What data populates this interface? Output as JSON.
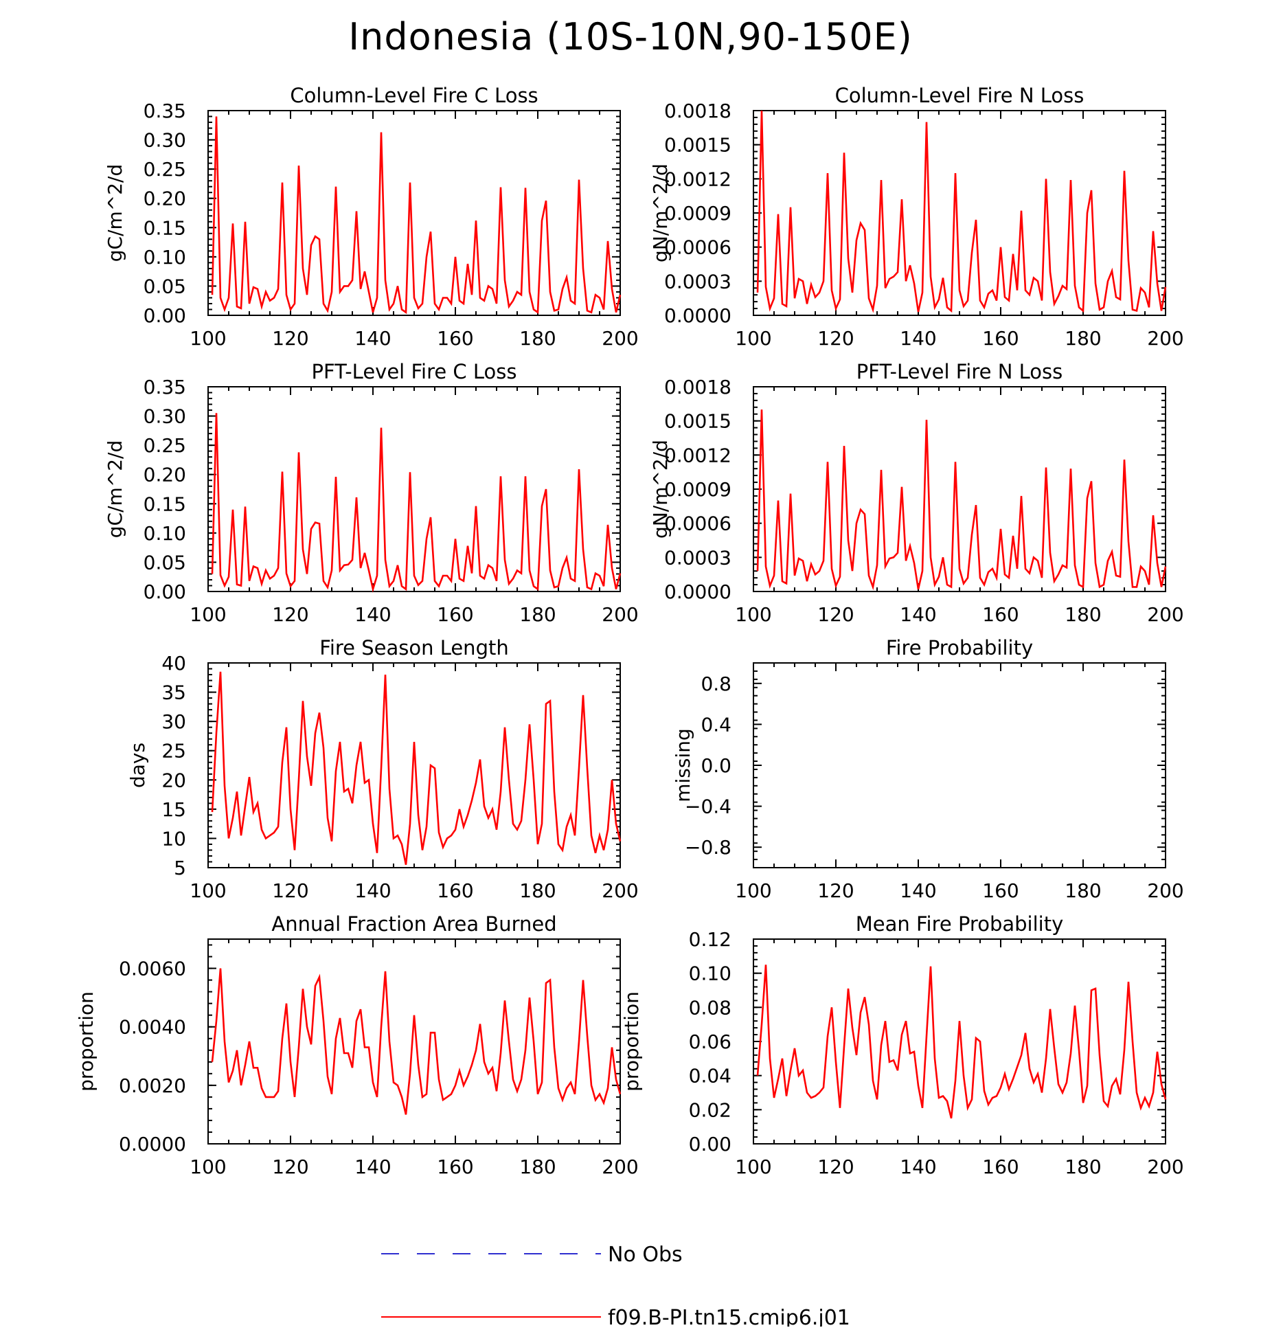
{
  "figure": {
    "title": "Indonesia (10S-10N,90-150E)"
  },
  "legend": {
    "items": [
      {
        "label": "No Obs",
        "color": "#2f2fd0",
        "style": "dashed"
      },
      {
        "label": "f09.B-PI.tn15.cmip6.j01",
        "color": "#ff0000",
        "style": "solid"
      }
    ]
  },
  "chart_data": [
    {
      "id": "col-c",
      "type": "line",
      "title": "Column-Level Fire C Loss",
      "ylabel": "gC/m^2/d",
      "xlabel": "",
      "xlim": [
        100,
        200
      ],
      "ylim": [
        0,
        0.35
      ],
      "xticks": [
        "100",
        "120",
        "140",
        "160",
        "180",
        "200"
      ],
      "yticks": [
        "0.00",
        "0.05",
        "0.10",
        "0.15",
        "0.20",
        "0.25",
        "0.30",
        "0.35"
      ],
      "x_start": 101,
      "series": [
        {
          "color": "#ff0000",
          "values": [
            0.035,
            0.34,
            0.03,
            0.01,
            0.03,
            0.157,
            0.015,
            0.012,
            0.16,
            0.02,
            0.048,
            0.045,
            0.015,
            0.04,
            0.025,
            0.03,
            0.045,
            0.227,
            0.035,
            0.01,
            0.02,
            0.256,
            0.08,
            0.035,
            0.12,
            0.135,
            0.13,
            0.02,
            0.008,
            0.04,
            0.22,
            0.04,
            0.05,
            0.05,
            0.06,
            0.178,
            0.045,
            0.075,
            0.04,
            0.005,
            0.03,
            0.313,
            0.06,
            0.01,
            0.02,
            0.05,
            0.01,
            0.005,
            0.227,
            0.03,
            0.012,
            0.02,
            0.1,
            0.143,
            0.02,
            0.01,
            0.03,
            0.03,
            0.02,
            0.1,
            0.025,
            0.02,
            0.088,
            0.035,
            0.162,
            0.03,
            0.025,
            0.05,
            0.045,
            0.02,
            0.219,
            0.06,
            0.015,
            0.025,
            0.04,
            0.035,
            0.218,
            0.04,
            0.01,
            0.005,
            0.162,
            0.196,
            0.04,
            0.008,
            0.01,
            0.045,
            0.065,
            0.025,
            0.02,
            0.232,
            0.08,
            0.008,
            0.005,
            0.035,
            0.03,
            0.01,
            0.127,
            0.045,
            0.005,
            0.035
          ]
        }
      ]
    },
    {
      "id": "col-n",
      "type": "line",
      "title": "Column-Level Fire N Loss",
      "ylabel": "gN/m^2/d",
      "xlabel": "",
      "xlim": [
        100,
        200
      ],
      "ylim": [
        0,
        0.0018
      ],
      "xticks": [
        "100",
        "120",
        "140",
        "160",
        "180",
        "200"
      ],
      "yticks": [
        "0.0000",
        "0.0003",
        "0.0006",
        "0.0009",
        "0.0012",
        "0.0015",
        "0.0018"
      ],
      "x_start": 101,
      "series": [
        {
          "color": "#ff0000",
          "values": [
            0.0002,
            0.0018,
            0.00025,
            6e-05,
            0.00015,
            0.00089,
            0.0001,
            8e-05,
            0.00095,
            0.00015,
            0.00032,
            0.0003,
            0.0001,
            0.00027,
            0.00016,
            0.0002,
            0.0003,
            0.00125,
            0.00022,
            6e-05,
            0.00014,
            0.00143,
            0.0005,
            0.0002,
            0.00066,
            0.00081,
            0.00075,
            0.00015,
            5e-05,
            0.00026,
            0.00119,
            0.00024,
            0.00032,
            0.00034,
            0.00038,
            0.00102,
            0.0003,
            0.00044,
            0.00028,
            3e-05,
            0.0002,
            0.0017,
            0.00034,
            7e-05,
            0.00014,
            0.00033,
            7e-05,
            4e-05,
            0.00125,
            0.00022,
            8e-05,
            0.00013,
            0.00055,
            0.00084,
            0.00013,
            7e-05,
            0.00019,
            0.00022,
            0.00013,
            0.0006,
            0.00016,
            0.00013,
            0.00054,
            0.00022,
            0.00092,
            0.00022,
            0.00018,
            0.00033,
            0.0003,
            0.00013,
            0.0012,
            0.00038,
            0.0001,
            0.00017,
            0.00026,
            0.00023,
            0.00119,
            0.00026,
            7e-05,
            4e-05,
            0.0009,
            0.0011,
            0.00028,
            5e-05,
            7e-05,
            0.0003,
            0.00039,
            0.00016,
            0.00014,
            0.00127,
            0.00048,
            5e-05,
            4e-05,
            0.00024,
            0.0002,
            7e-05,
            0.00074,
            0.00028,
            4e-05,
            0.00025
          ]
        }
      ]
    },
    {
      "id": "pft-c",
      "type": "line",
      "title": "PFT-Level Fire C Loss",
      "ylabel": "gC/m^2/d",
      "xlabel": "",
      "xlim": [
        100,
        200
      ],
      "ylim": [
        0,
        0.35
      ],
      "xticks": [
        "100",
        "120",
        "140",
        "160",
        "180",
        "200"
      ],
      "yticks": [
        "0.00",
        "0.05",
        "0.10",
        "0.15",
        "0.20",
        "0.25",
        "0.30",
        "0.35"
      ],
      "x_start": 101,
      "series": [
        {
          "color": "#ff0000",
          "values": [
            0.03,
            0.305,
            0.028,
            0.01,
            0.025,
            0.14,
            0.012,
            0.01,
            0.145,
            0.018,
            0.043,
            0.04,
            0.013,
            0.036,
            0.022,
            0.027,
            0.04,
            0.205,
            0.031,
            0.009,
            0.018,
            0.238,
            0.072,
            0.03,
            0.107,
            0.118,
            0.116,
            0.018,
            0.007,
            0.036,
            0.196,
            0.036,
            0.045,
            0.046,
            0.054,
            0.161,
            0.04,
            0.066,
            0.036,
            0.004,
            0.027,
            0.28,
            0.054,
            0.009,
            0.018,
            0.045,
            0.009,
            0.004,
            0.204,
            0.027,
            0.011,
            0.018,
            0.09,
            0.127,
            0.018,
            0.009,
            0.027,
            0.027,
            0.018,
            0.09,
            0.022,
            0.018,
            0.078,
            0.031,
            0.146,
            0.027,
            0.022,
            0.045,
            0.04,
            0.018,
            0.197,
            0.054,
            0.013,
            0.022,
            0.036,
            0.031,
            0.197,
            0.036,
            0.009,
            0.004,
            0.146,
            0.175,
            0.036,
            0.007,
            0.009,
            0.04,
            0.058,
            0.022,
            0.018,
            0.209,
            0.072,
            0.007,
            0.004,
            0.031,
            0.027,
            0.009,
            0.114,
            0.04,
            0.004,
            0.031
          ]
        }
      ]
    },
    {
      "id": "pft-n",
      "type": "line",
      "title": "PFT-Level Fire N Loss",
      "ylabel": "gN/m^2/d",
      "xlabel": "",
      "xlim": [
        100,
        200
      ],
      "ylim": [
        0,
        0.0018
      ],
      "xticks": [
        "100",
        "120",
        "140",
        "160",
        "180",
        "200"
      ],
      "yticks": [
        "0.0000",
        "0.0003",
        "0.0006",
        "0.0009",
        "0.0012",
        "0.0015",
        "0.0018"
      ],
      "x_start": 101,
      "series": [
        {
          "color": "#ff0000",
          "values": [
            0.00018,
            0.0016,
            0.00022,
            5e-05,
            0.00014,
            0.0008,
            9e-05,
            7e-05,
            0.00086,
            0.00014,
            0.00029,
            0.00027,
            9e-05,
            0.00024,
            0.00015,
            0.00018,
            0.00027,
            0.00114,
            0.0002,
            5e-05,
            0.00013,
            0.00128,
            0.00045,
            0.00018,
            0.0006,
            0.00072,
            0.00068,
            0.00014,
            4e-05,
            0.00023,
            0.00107,
            0.00022,
            0.00029,
            0.0003,
            0.00034,
            0.00092,
            0.00027,
            0.0004,
            0.00025,
            2e-05,
            0.00018,
            0.00151,
            0.0003,
            6e-05,
            0.00013,
            0.0003,
            6e-05,
            4e-05,
            0.00114,
            0.0002,
            7e-05,
            0.00012,
            0.0005,
            0.00076,
            0.00012,
            6e-05,
            0.00017,
            0.0002,
            0.00012,
            0.00055,
            0.00015,
            0.00012,
            0.00049,
            0.0002,
            0.00084,
            0.0002,
            0.00016,
            0.0003,
            0.00027,
            0.00012,
            0.00109,
            0.00034,
            9e-05,
            0.00015,
            0.00023,
            0.00021,
            0.00108,
            0.00023,
            6e-05,
            4e-05,
            0.00082,
            0.00097,
            0.00025,
            4e-05,
            6e-05,
            0.00027,
            0.00035,
            0.00014,
            0.00013,
            0.00116,
            0.00044,
            4e-05,
            4e-05,
            0.00022,
            0.00018,
            6e-05,
            0.00067,
            0.00025,
            4e-05,
            0.00022
          ]
        }
      ]
    },
    {
      "id": "season",
      "type": "line",
      "title": "Fire Season Length",
      "ylabel": "days",
      "xlabel": "",
      "xlim": [
        100,
        200
      ],
      "ylim": [
        5,
        40
      ],
      "xticks": [
        "100",
        "120",
        "140",
        "160",
        "180",
        "200"
      ],
      "yticks": [
        "5",
        "10",
        "15",
        "20",
        "25",
        "30",
        "35",
        "40"
      ],
      "x_start": 101,
      "series": [
        {
          "color": "#ff0000",
          "values": [
            14.5,
            28,
            38.5,
            19,
            10,
            13.5,
            18,
            10.5,
            15.5,
            20.5,
            14.5,
            16,
            11.5,
            10,
            10.5,
            11,
            12,
            23,
            29,
            15,
            8,
            20,
            33.5,
            24,
            19,
            28,
            31.5,
            25.5,
            13.5,
            9.5,
            21.5,
            26.5,
            18,
            18.5,
            16,
            22.5,
            26.5,
            19.5,
            20,
            12.5,
            7.5,
            22,
            38,
            18.5,
            10,
            10.5,
            9,
            5.5,
            12.5,
            26.5,
            14,
            8,
            12,
            22.5,
            22,
            11,
            8.5,
            10,
            10.5,
            11.5,
            15,
            12,
            14,
            16.5,
            19.5,
            23.5,
            15.5,
            13.5,
            15,
            11.5,
            18,
            29,
            20,
            12.5,
            11.5,
            13,
            20,
            29.5,
            20,
            9,
            12.5,
            33,
            33.5,
            18,
            9,
            8,
            12,
            14,
            10.5,
            22,
            34.5,
            22,
            10.5,
            7.5,
            10.5,
            8,
            11.5,
            20,
            12.5,
            9.5
          ]
        }
      ]
    },
    {
      "id": "prob",
      "type": "line",
      "title": "Fire Probability",
      "ylabel": "missing",
      "xlabel": "",
      "xlim": [
        100,
        200
      ],
      "ylim": [
        -1,
        1
      ],
      "xticks": [
        "100",
        "120",
        "140",
        "160",
        "180",
        "200"
      ],
      "yticks": [
        "−0.8",
        "−0.4",
        "0.0",
        "0.4",
        "0.8"
      ],
      "ytick_values": [
        -0.8,
        -0.4,
        0,
        0.4,
        0.8
      ],
      "x_start": 101,
      "series": []
    },
    {
      "id": "frac",
      "type": "line",
      "title": "Annual Fraction Area Burned",
      "ylabel": "proportion",
      "xlabel": "",
      "xlim": [
        100,
        200
      ],
      "ylim": [
        0,
        0.007
      ],
      "xticks": [
        "100",
        "120",
        "140",
        "160",
        "180",
        "200"
      ],
      "yticks": [
        "0.0000",
        "0.0020",
        "0.0040",
        "0.0060"
      ],
      "ytick_values": [
        0,
        0.002,
        0.004,
        0.006
      ],
      "x_start": 101,
      "series": [
        {
          "color": "#ff0000",
          "values": [
            0.0028,
            0.0042,
            0.006,
            0.0035,
            0.0021,
            0.0025,
            0.0032,
            0.002,
            0.0027,
            0.0035,
            0.0026,
            0.0026,
            0.0019,
            0.0016,
            0.0016,
            0.0016,
            0.0018,
            0.0036,
            0.0048,
            0.0028,
            0.0016,
            0.0033,
            0.0053,
            0.004,
            0.0034,
            0.0054,
            0.0057,
            0.0042,
            0.0023,
            0.0017,
            0.0036,
            0.0043,
            0.0031,
            0.0031,
            0.0026,
            0.0042,
            0.0046,
            0.0033,
            0.0033,
            0.0021,
            0.0016,
            0.004,
            0.0059,
            0.0035,
            0.0021,
            0.002,
            0.0016,
            0.001,
            0.0024,
            0.0044,
            0.0027,
            0.0016,
            0.0017,
            0.0038,
            0.0038,
            0.0022,
            0.0015,
            0.0016,
            0.0017,
            0.002,
            0.0025,
            0.002,
            0.0023,
            0.0027,
            0.0032,
            0.0041,
            0.0028,
            0.0024,
            0.0026,
            0.0018,
            0.0031,
            0.0049,
            0.0035,
            0.0022,
            0.0018,
            0.0022,
            0.0032,
            0.005,
            0.0035,
            0.0017,
            0.0021,
            0.0055,
            0.0056,
            0.0033,
            0.0019,
            0.0015,
            0.0019,
            0.0021,
            0.0017,
            0.0035,
            0.0056,
            0.0037,
            0.002,
            0.0015,
            0.0017,
            0.0014,
            0.0019,
            0.0033,
            0.0022,
            0.0017
          ]
        }
      ]
    },
    {
      "id": "meanprob",
      "type": "line",
      "title": "Mean Fire Probability",
      "ylabel": "proportion",
      "xlabel": "",
      "xlim": [
        100,
        200
      ],
      "ylim": [
        0,
        0.12
      ],
      "xticks": [
        "100",
        "120",
        "140",
        "160",
        "180",
        "200"
      ],
      "yticks": [
        "0.00",
        "0.02",
        "0.04",
        "0.06",
        "0.08",
        "0.10",
        "0.12"
      ],
      "x_start": 101,
      "series": [
        {
          "color": "#ff0000",
          "values": [
            0.04,
            0.07,
            0.105,
            0.05,
            0.027,
            0.038,
            0.05,
            0.028,
            0.043,
            0.056,
            0.04,
            0.043,
            0.03,
            0.027,
            0.028,
            0.03,
            0.033,
            0.063,
            0.08,
            0.048,
            0.021,
            0.057,
            0.091,
            0.068,
            0.052,
            0.077,
            0.086,
            0.07,
            0.037,
            0.026,
            0.058,
            0.072,
            0.048,
            0.049,
            0.043,
            0.064,
            0.072,
            0.053,
            0.054,
            0.034,
            0.021,
            0.063,
            0.104,
            0.05,
            0.027,
            0.028,
            0.025,
            0.015,
            0.037,
            0.072,
            0.04,
            0.021,
            0.026,
            0.062,
            0.06,
            0.031,
            0.023,
            0.027,
            0.028,
            0.033,
            0.041,
            0.032,
            0.038,
            0.045,
            0.052,
            0.065,
            0.044,
            0.036,
            0.041,
            0.03,
            0.05,
            0.079,
            0.056,
            0.035,
            0.03,
            0.036,
            0.053,
            0.081,
            0.055,
            0.024,
            0.034,
            0.09,
            0.091,
            0.052,
            0.025,
            0.022,
            0.034,
            0.038,
            0.029,
            0.055,
            0.095,
            0.06,
            0.03,
            0.021,
            0.027,
            0.022,
            0.03,
            0.054,
            0.035,
            0.026
          ]
        }
      ]
    }
  ]
}
